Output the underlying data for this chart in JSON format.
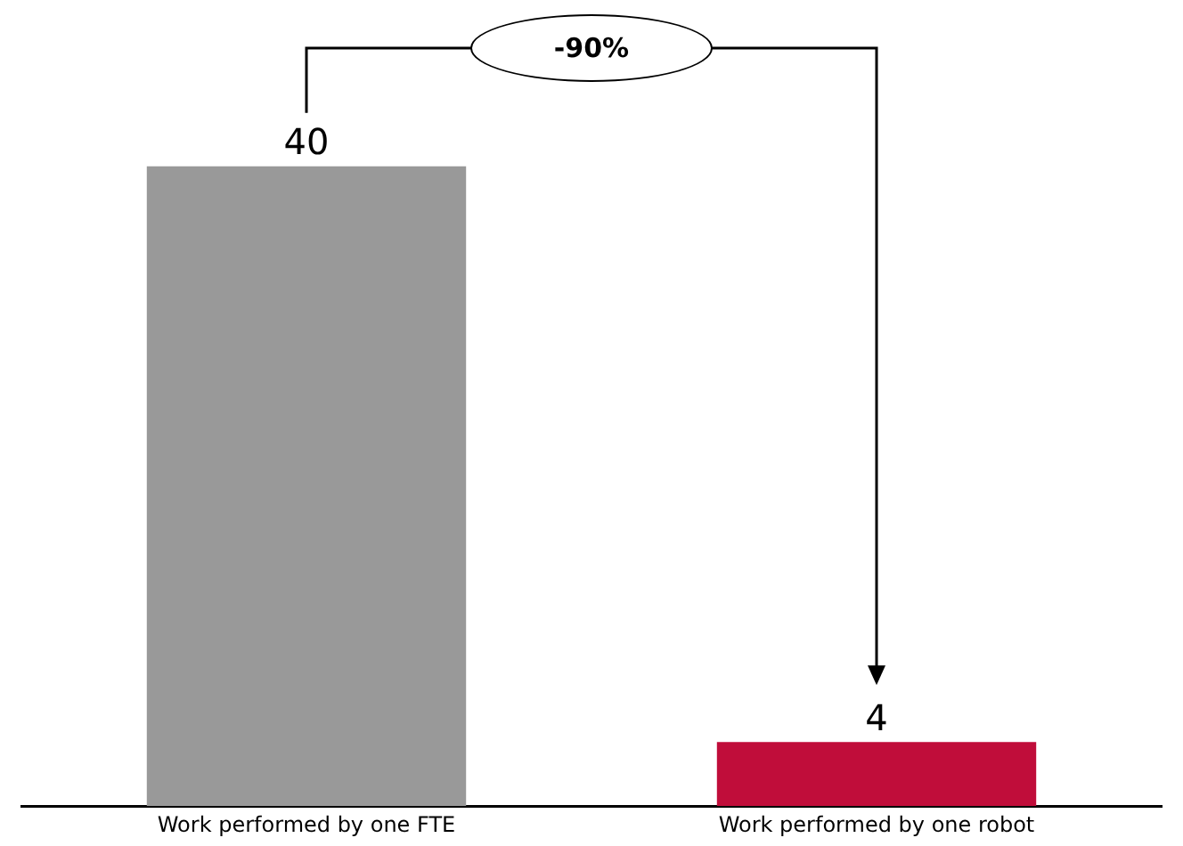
{
  "chart_data": {
    "type": "bar",
    "categories": [
      "Work performed by one FTE",
      "Work performed by one robot"
    ],
    "values": [
      40,
      4
    ],
    "colors": [
      "#999999",
      "#c00d3a"
    ],
    "data_labels": true,
    "grid": false,
    "legend": false,
    "annotations": [
      "-90%"
    ]
  }
}
